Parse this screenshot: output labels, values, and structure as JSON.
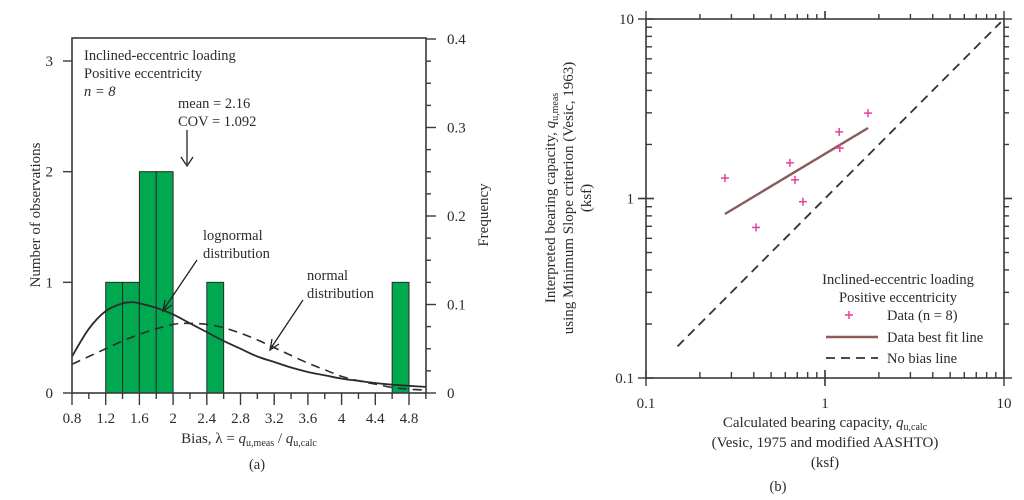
{
  "chart_data": [
    {
      "id": "a",
      "type": "bar",
      "panel_label": "(a)",
      "title_lines": [
        "Inclined-eccentric loading",
        "Positive eccentricity",
        "n = 8"
      ],
      "stats_lines": [
        "mean = 2.16",
        "COV = 1.092"
      ],
      "mean": 2.16,
      "cov": 1.092,
      "n": 8,
      "xlabel": "Bias, λ = q_u,meas / q_u,calc",
      "xlabel_parts": {
        "prefix": "Bias, λ = ",
        "q1": "q",
        "s1": "u,meas",
        "sep": " / ",
        "q2": "q",
        "s2": "u,calc"
      },
      "ylabel": "Number of observations",
      "y2label": "Frequency",
      "xlim": [
        0.8,
        5.0
      ],
      "ylim": [
        0,
        3.2
      ],
      "y2lim": [
        0,
        0.4
      ],
      "xticks": [
        "0.8",
        "1.2",
        "1.6",
        "2",
        "2.4",
        "2.8",
        "3.2",
        "3.6",
        "4",
        "4.4",
        "4.8"
      ],
      "yticks": [
        "0",
        "1",
        "2",
        "3"
      ],
      "y2ticks": [
        "0",
        "0.1",
        "0.2",
        "0.3",
        "0.4"
      ],
      "bin_width": 0.2,
      "bins": [
        {
          "start": 1.2,
          "count": 1
        },
        {
          "start": 1.4,
          "count": 1
        },
        {
          "start": 1.6,
          "count": 2
        },
        {
          "start": 1.8,
          "count": 2
        },
        {
          "start": 2.4,
          "count": 1
        },
        {
          "start": 4.6,
          "count": 1
        }
      ],
      "series": [
        {
          "name": "lognormal distribution",
          "style": "solid",
          "x": [
            0.8,
            1.0,
            1.2,
            1.4,
            1.52,
            1.6,
            1.8,
            2.0,
            2.2,
            2.4,
            2.6,
            2.8,
            3.0,
            3.2,
            3.4,
            3.6,
            3.8,
            4.0,
            4.2,
            4.4,
            4.6,
            4.8,
            5.0
          ],
          "y": [
            0.33,
            0.58,
            0.74,
            0.81,
            0.82,
            0.81,
            0.77,
            0.71,
            0.63,
            0.55,
            0.47,
            0.4,
            0.33,
            0.28,
            0.23,
            0.19,
            0.16,
            0.13,
            0.11,
            0.09,
            0.075,
            0.065,
            0.055
          ]
        },
        {
          "name": "normal distribution",
          "style": "dashed",
          "x": [
            0.8,
            1.0,
            1.2,
            1.4,
            1.6,
            1.8,
            2.0,
            2.16,
            2.4,
            2.6,
            2.8,
            3.0,
            3.2,
            3.4,
            3.6,
            3.8,
            4.0,
            4.2,
            4.4,
            4.6,
            4.8,
            5.0
          ],
          "y": [
            0.26,
            0.33,
            0.4,
            0.47,
            0.53,
            0.58,
            0.62,
            0.63,
            0.62,
            0.59,
            0.54,
            0.48,
            0.41,
            0.34,
            0.27,
            0.21,
            0.15,
            0.11,
            0.08,
            0.05,
            0.035,
            0.025
          ]
        }
      ],
      "annotations": {
        "lognormal": [
          "lognormal",
          "distribution"
        ],
        "normal": [
          "normal",
          "distribution"
        ]
      }
    },
    {
      "id": "b",
      "type": "scatter",
      "panel_label": "(b)",
      "xscale": "log",
      "yscale": "log",
      "xlim": [
        0.1,
        10
      ],
      "ylim": [
        0.1,
        10
      ],
      "xticks": [
        "0.1",
        "1",
        "10"
      ],
      "yticks": [
        "0.1",
        "1",
        "10"
      ],
      "xlabel_lines": [
        "Calculated bearing capacity, q_u,calc",
        "(Vesic, 1975 and modified AASHTO)",
        "(ksf)"
      ],
      "xlabel_parts": {
        "prefix": "Calculated bearing capacity, ",
        "q": "q",
        "sub": "u,calc"
      },
      "ylabel_lines": [
        "Interpreted bearing capacity, q_u,meas",
        "using Minimum Slope criterion (Vesic, 1963)",
        "(ksf)"
      ],
      "ylabel_parts": {
        "prefix": "Interpreted bearing capacity, ",
        "q": "q",
        "sub": "u,meas"
      },
      "points": [
        {
          "x": 0.276,
          "y": 1.3
        },
        {
          "x": 0.412,
          "y": 0.69
        },
        {
          "x": 0.637,
          "y": 1.58
        },
        {
          "x": 0.68,
          "y": 1.27
        },
        {
          "x": 0.753,
          "y": 0.96
        },
        {
          "x": 1.2,
          "y": 2.35
        },
        {
          "x": 1.21,
          "y": 1.91
        },
        {
          "x": 1.74,
          "y": 2.99
        }
      ],
      "best_fit": {
        "x": [
          0.276,
          1.74
        ],
        "y": [
          0.82,
          2.47
        ]
      },
      "no_bias": {
        "x": [
          0.15,
          9.6
        ],
        "y": [
          0.15,
          9.6
        ]
      },
      "legend": {
        "placement": "bottom-right",
        "title_lines": [
          "Inclined-eccentric loading",
          "Positive eccentricity"
        ],
        "entries": [
          {
            "label": "Data (n = 8)",
            "marker": "plus"
          },
          {
            "label": "Data best fit line",
            "marker": "solid-line"
          },
          {
            "label": "No bias line",
            "marker": "dashed-line"
          }
        ]
      },
      "colors": {
        "data": "#e8409a",
        "fit": "#8b5a5a",
        "nobias": "#333333"
      }
    }
  ]
}
